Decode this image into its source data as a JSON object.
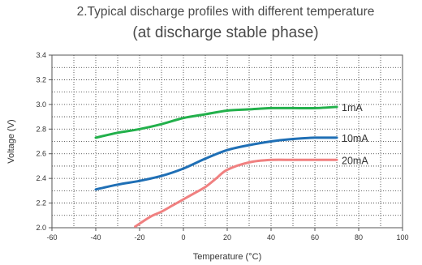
{
  "chart_data": {
    "type": "line",
    "title": "2.Typical discharge profiles with different temperature",
    "subtitle": "(at discharge stable phase)",
    "xlabel": "Temperature (°C)",
    "ylabel": "Voltage (V)",
    "xlim": [
      -60,
      100
    ],
    "ylim": [
      2.0,
      3.4
    ],
    "xticks": [
      "-60",
      "-40",
      "-20",
      "0",
      "20",
      "40",
      "60",
      "80",
      "100"
    ],
    "yticks": [
      "2.0",
      "2.2",
      "2.4",
      "2.6",
      "2.8",
      "3.0",
      "3.2",
      "3.4"
    ],
    "grid": true,
    "series": [
      {
        "name": "1mA",
        "color": "#22b04b",
        "x": [
          -40,
          -30,
          -20,
          -10,
          0,
          10,
          20,
          30,
          40,
          50,
          60,
          70
        ],
        "y": [
          2.73,
          2.77,
          2.8,
          2.84,
          2.89,
          2.92,
          2.95,
          2.96,
          2.97,
          2.97,
          2.97,
          2.98
        ]
      },
      {
        "name": "10mA",
        "color": "#1f6fb5",
        "x": [
          -40,
          -30,
          -20,
          -10,
          0,
          10,
          20,
          30,
          40,
          50,
          60,
          70
        ],
        "y": [
          2.31,
          2.35,
          2.38,
          2.42,
          2.48,
          2.56,
          2.63,
          2.67,
          2.7,
          2.72,
          2.73,
          2.73
        ]
      },
      {
        "name": "20mA",
        "color": "#f08080",
        "x": [
          -22,
          -15,
          -10,
          -5,
          0,
          5,
          10,
          15,
          20,
          30,
          40,
          50,
          60,
          70
        ],
        "y": [
          2.01,
          2.09,
          2.13,
          2.18,
          2.23,
          2.28,
          2.33,
          2.4,
          2.47,
          2.53,
          2.55,
          2.55,
          2.55,
          2.55
        ]
      }
    ]
  }
}
